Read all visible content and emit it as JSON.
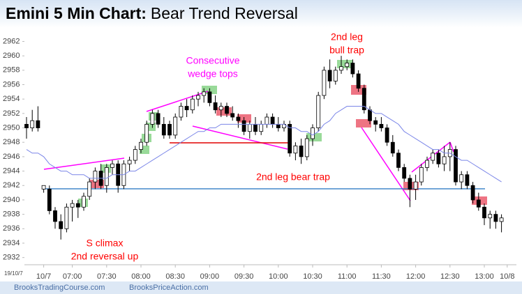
{
  "chart_data": {
    "type": "candlestick",
    "title": "Emini 5 Min Chart:",
    "subtitle": "Bear Trend Reversal",
    "date_label": "19/10/7",
    "categories": [
      null,
      null,
      null,
      "10/7",
      null,
      null,
      null,
      null,
      "07:00",
      null,
      null,
      null,
      null,
      null,
      "07:30",
      null,
      null,
      null,
      null,
      null,
      "08:00",
      null,
      null,
      null,
      null,
      null,
      "08:30",
      null,
      null,
      null,
      null,
      null,
      "09:00",
      null,
      null,
      null,
      null,
      null,
      "09:30",
      null,
      null,
      null,
      null,
      null,
      "10:00",
      null,
      null,
      null,
      null,
      null,
      "10:30",
      null,
      null,
      null,
      null,
      null,
      "11:00",
      null,
      null,
      null,
      null,
      null,
      "11:30",
      null,
      null,
      null,
      null,
      null,
      "12:00",
      null,
      null,
      null,
      null,
      null,
      "12:30",
      null,
      null,
      null,
      null,
      null,
      "13:00",
      null,
      null,
      null,
      "10/8"
    ],
    "series": [
      {
        "open": [
          2950.5,
          2950,
          2951,
          2941.5,
          2941.5,
          2938.5,
          2937,
          2936,
          2939,
          2939.5,
          2939,
          2940.5,
          2942.5,
          2944,
          2942,
          2944.5,
          2945,
          2942,
          2945,
          2945.5,
          2947,
          2948,
          2950.5,
          2952,
          2950.5,
          2950.5,
          2949,
          2951.5,
          2953,
          2952.5,
          2954,
          2954.5,
          2955,
          2953.5,
          2952.5,
          2953,
          2952,
          2951.5,
          2951,
          2949.5,
          2950.5,
          2949.5,
          2950.5,
          2951.5,
          2950.5,
          2950,
          2950.5,
          2946.5,
          2947.5,
          2946,
          2948.5,
          2950,
          2954.5,
          2958,
          2956.5,
          2958,
          2958.5,
          2959,
          2957.5,
          2955.5,
          2952.5,
          2951,
          2950.5,
          2950,
          2948,
          2946.5,
          2944.5,
          2943,
          2941.5,
          2942.5,
          2944.5,
          2945.5,
          2946.5,
          2945,
          2946,
          2947,
          2942.5,
          2943.5,
          2942,
          2940,
          2939,
          2937.5,
          2938,
          2937,
          null
        ],
        "high": [
          2951.5,
          2952.5,
          2953,
          2942,
          2942,
          2939,
          2938,
          2939.5,
          2940,
          2940,
          2941,
          2943,
          2944.5,
          2945,
          2945,
          2945.5,
          2945.5,
          2945.5,
          2946,
          2947.5,
          2948.5,
          2951,
          2952.5,
          2952.5,
          2951.5,
          2951,
          2952,
          2953.5,
          2954,
          2954.5,
          2955,
          2955.5,
          2955.5,
          2954.5,
          2953.5,
          2953.5,
          2953,
          2952,
          2951.5,
          2951,
          2951.5,
          2951,
          2952,
          2952,
          2951.5,
          2951,
          2951,
          2948,
          2948.5,
          2949,
          2950.5,
          2955,
          2958.5,
          2959.5,
          2958.5,
          2960,
          2959.5,
          2959.5,
          2958,
          2956,
          2953,
          2951.5,
          2951.5,
          2950.5,
          2949,
          2947,
          2945,
          2943.5,
          2943.5,
          2945,
          2946,
          2947,
          2947,
          2947.5,
          2948,
          2947.5,
          2944,
          2944,
          2942.5,
          2941,
          2939.5,
          2938.5,
          2938.5,
          2938,
          null
        ],
        "low": [
          2948.5,
          2949.5,
          2949.5,
          2941,
          2938,
          2936,
          2934.5,
          2935.5,
          2937,
          2937.5,
          2938.5,
          2940,
          2941.5,
          2941.5,
          2941,
          2943.5,
          2941,
          2941.5,
          2944,
          2945,
          2946.5,
          2947.5,
          2950,
          2950,
          2948.5,
          2948.5,
          2948.5,
          2951,
          2951.5,
          2952,
          2953,
          2953.5,
          2953,
          2952,
          2951.5,
          2951.5,
          2951,
          2950,
          2949,
          2948.5,
          2949,
          2949,
          2950,
          2950,
          2949.5,
          2949.5,
          2946,
          2945.5,
          2945,
          2945.5,
          2947.5,
          2949.5,
          2954,
          2955.5,
          2956,
          2957.5,
          2958,
          2957,
          2955,
          2952,
          2950.5,
          2949.5,
          2949.5,
          2947.5,
          2946,
          2944,
          2942.5,
          2939,
          2940,
          2942,
          2944,
          2945,
          2944.5,
          2944,
          2944,
          2942,
          2941.5,
          2941.5,
          2939.5,
          2938.5,
          2936.5,
          2936,
          2936,
          2935.5,
          null
        ],
        "close": [
          2950,
          2951,
          2950,
          2942,
          2938.5,
          2937,
          2936,
          2939,
          2939.5,
          2939,
          2940.5,
          2942.5,
          2944,
          2942,
          2944.5,
          2945,
          2942,
          2945,
          2945.5,
          2947,
          2948,
          2950.5,
          2952,
          2950.5,
          2949,
          2949,
          2951.5,
          2953,
          2952.5,
          2954,
          2954.5,
          2955,
          2953.5,
          2952.5,
          2953,
          2952,
          2951.5,
          2951,
          2949.5,
          2950.5,
          2949.5,
          2950.5,
          2951.5,
          2950.5,
          2950,
          2950.5,
          2946.5,
          2947.5,
          2946,
          2948.5,
          2950,
          2954.5,
          2958,
          2956.5,
          2958,
          2958.5,
          2959,
          2957.5,
          2955.5,
          2952.5,
          2951,
          2950.5,
          2950,
          2948,
          2946.5,
          2944.5,
          2943,
          2941.5,
          2942.5,
          2944.5,
          2945.5,
          2946.5,
          2945,
          2946,
          2947,
          2942.5,
          2943.5,
          2942,
          2940,
          2939,
          2937.5,
          2938,
          2937,
          2937.5,
          null
        ]
      },
      {
        "type": "line",
        "color": "#7b86e8",
        "values": [
          2947,
          2946.5,
          2946.5,
          2946,
          2945,
          2944.5,
          2944,
          2944,
          2943.5,
          2943.5,
          2943.5,
          2943,
          2943,
          2943,
          2943,
          2943.5,
          2943.5,
          2943.5,
          2944,
          2944,
          2944.5,
          2945,
          2945.5,
          2946,
          2946.5,
          2947,
          2947.5,
          2948,
          2948.5,
          2949,
          2949.5,
          2949.5,
          2950,
          2950,
          2950.5,
          2950.5,
          2950.5,
          2950.5,
          2950.5,
          2950.5,
          2950.5,
          2950.5,
          2950.5,
          2950.5,
          2950.5,
          2950.5,
          2950,
          2950,
          2949.5,
          2949.5,
          2949,
          2949.5,
          2950.5,
          2951,
          2952,
          2952.5,
          2953,
          2953,
          2953,
          2953,
          2952.5,
          2952,
          2952,
          2951.5,
          2951,
          2950.5,
          2949.5,
          2949,
          2948.5,
          2948,
          2947.5,
          2947,
          2947,
          2946.5,
          2946.5,
          2946,
          2945.5,
          2945.5,
          2945,
          2944.5,
          2944,
          2943.5,
          2943,
          2942.5,
          null
        ]
      }
    ],
    "ylim": [
      2931,
      2963.4
    ],
    "yticks": [
      2932,
      2934,
      2936,
      2938,
      2940,
      2942,
      2944,
      2946,
      2948,
      2950,
      2952,
      2954,
      2956,
      2958,
      2960,
      2962
    ],
    "annotations": [
      {
        "lines": [
          "Consecutive",
          "wedge tops"
        ],
        "color": "#ff00ff"
      },
      {
        "lines": [
          "2nd leg",
          "bull trap"
        ],
        "color": "#ff0000"
      },
      {
        "lines": [
          "2nd leg bear trap"
        ],
        "color": "#ff0000"
      },
      {
        "lines": [
          "S climax",
          "2nd reversal up"
        ],
        "color": "#ff0000"
      }
    ],
    "footer": [
      "BrooksTradingCourse.com",
      "BrooksPriceAction.com"
    ]
  }
}
